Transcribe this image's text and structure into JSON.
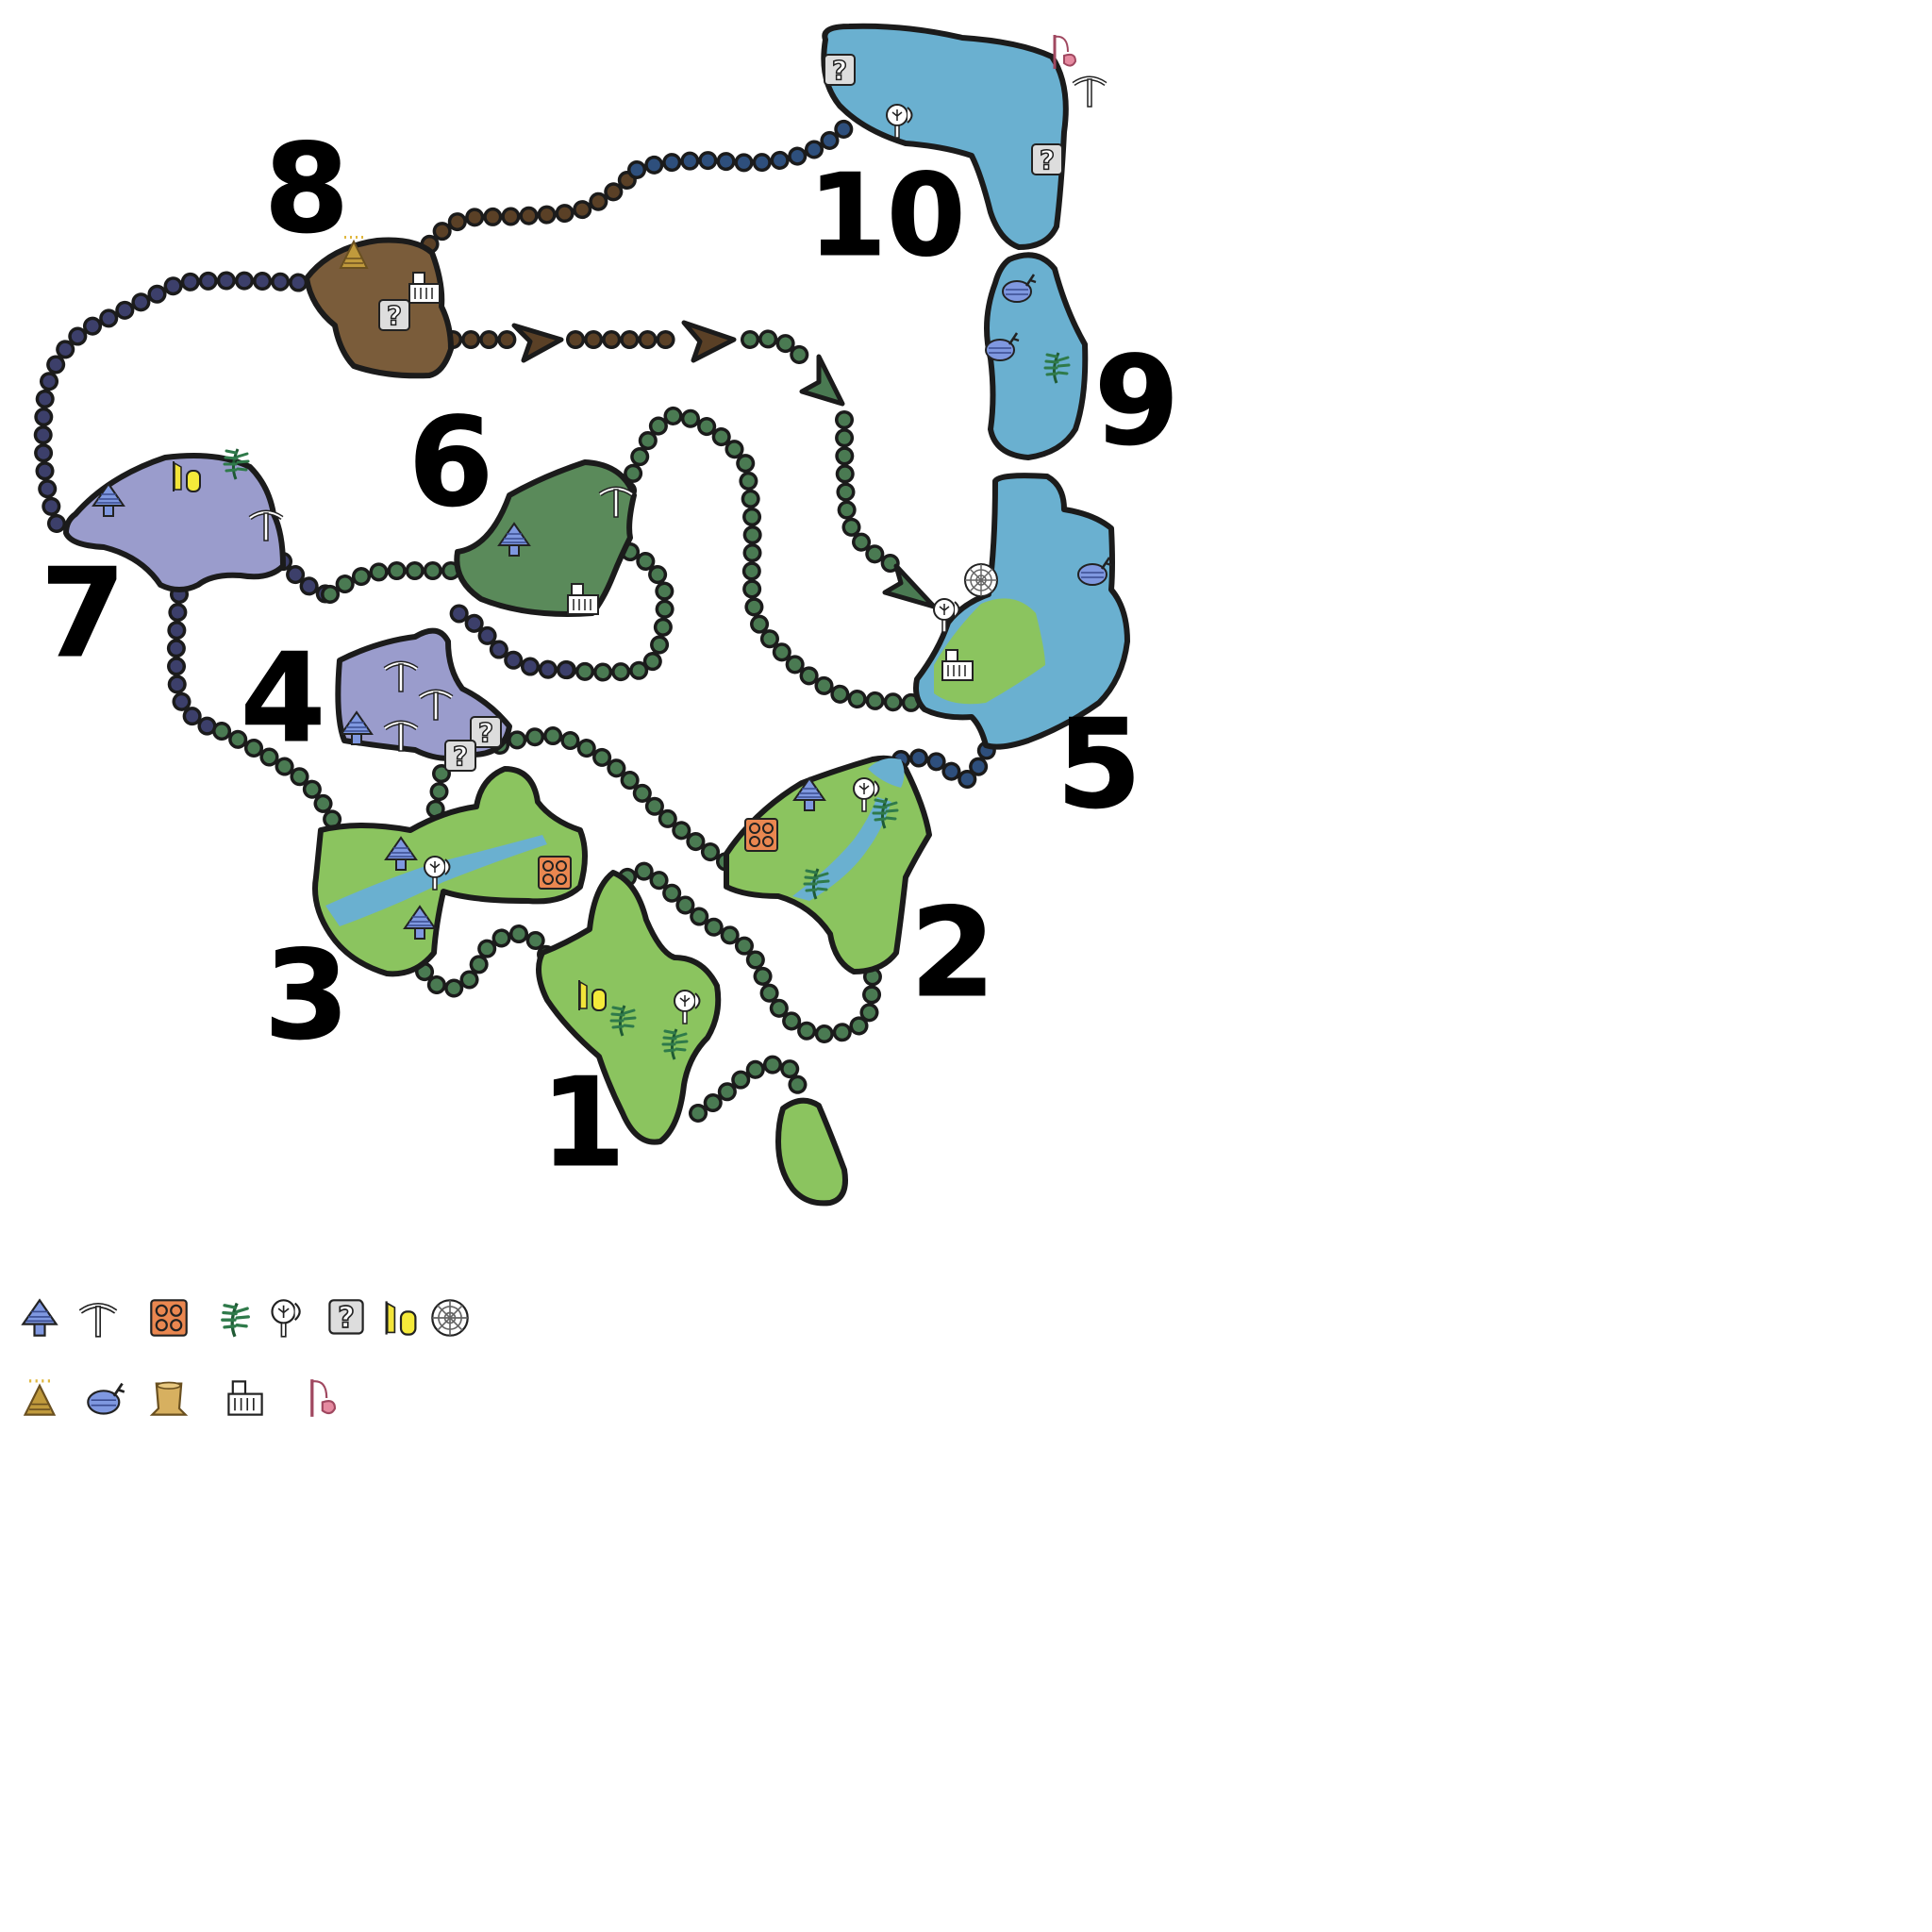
{
  "zones": [
    {
      "id": "zone-1",
      "label": "1"
    },
    {
      "id": "zone-2",
      "label": "2"
    },
    {
      "id": "zone-3",
      "label": "3"
    },
    {
      "id": "zone-4",
      "label": "4"
    },
    {
      "id": "zone-5",
      "label": "5"
    },
    {
      "id": "zone-6",
      "label": "6"
    },
    {
      "id": "zone-7",
      "label": "7"
    },
    {
      "id": "zone-8",
      "label": "8"
    },
    {
      "id": "zone-9",
      "label": "9"
    },
    {
      "id": "zone-10",
      "label": "10"
    }
  ],
  "legend": {
    "row1": [
      "mushroom-icon",
      "pickaxe-icon",
      "honeycomb-icon",
      "herb-icon",
      "bug-net-icon",
      "unknown-gather-icon",
      "pod-icon",
      "spiderweb-icon"
    ],
    "row2": [
      "dung-icon",
      "fish-icon",
      "stump-icon",
      "bone-icon",
      "fishing-icon"
    ]
  },
  "colors": {
    "grass": "#8bc45f",
    "forest": "#5a8a5a",
    "water": "#6ab0d0",
    "cave": "#9a9ccc",
    "dirt": "#7a5c3a",
    "path_green": "#4a7a52",
    "path_blue": "#2e4f7c",
    "path_navy": "#3c3f6a",
    "path_brown": "#5a4026",
    "outline": "#1b1b1b"
  }
}
